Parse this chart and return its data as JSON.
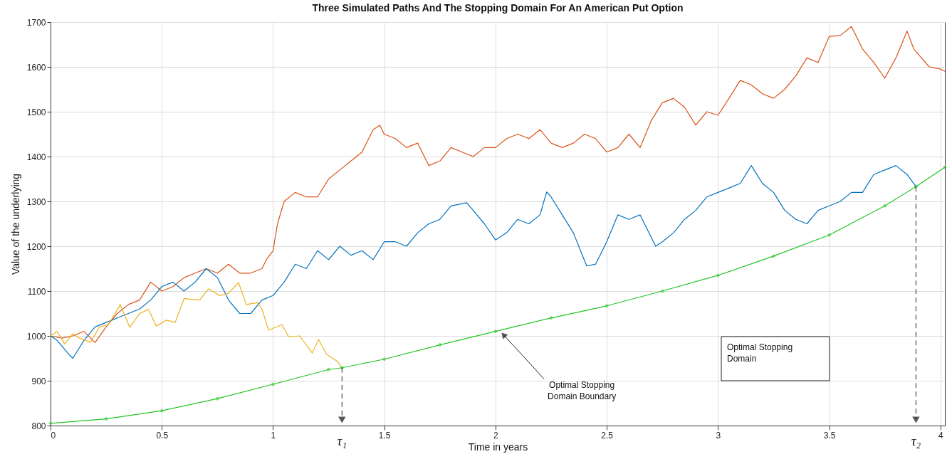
{
  "chart_data": {
    "type": "line",
    "title": "Three Simulated Paths And The Stopping Domain For An American Put Option",
    "xlabel": "Time in years",
    "ylabel": "Value of the underlying",
    "xlim": [
      0,
      4.02
    ],
    "ylim": [
      800,
      1700
    ],
    "xticks": [
      0,
      0.5,
      1,
      1.5,
      2,
      2.5,
      3,
      3.5,
      4
    ],
    "yticks": [
      800,
      900,
      1000,
      1100,
      1200,
      1300,
      1400,
      1500,
      1600,
      1700
    ],
    "grid": true,
    "series": [
      {
        "color": "#d95319",
        "x": [
          0,
          0.05,
          0.1,
          0.15,
          0.2,
          0.25,
          0.3,
          0.35,
          0.4,
          0.45,
          0.5,
          0.55,
          0.6,
          0.65,
          0.7,
          0.75,
          0.8,
          0.85,
          0.9,
          0.95,
          0.97,
          1.0,
          1.02,
          1.05,
          1.1,
          1.15,
          1.2,
          1.25,
          1.3,
          1.35,
          1.4,
          1.45,
          1.48,
          1.5,
          1.55,
          1.6,
          1.65,
          1.7,
          1.75,
          1.8,
          1.85,
          1.9,
          1.95,
          2.0,
          2.05,
          2.1,
          2.15,
          2.2,
          2.25,
          2.3,
          2.35,
          2.4,
          2.45,
          2.5,
          2.55,
          2.6,
          2.65,
          2.7,
          2.75,
          2.8,
          2.85,
          2.9,
          2.95,
          3.0,
          3.05,
          3.1,
          3.15,
          3.2,
          3.25,
          3.3,
          3.35,
          3.4,
          3.45,
          3.5,
          3.55,
          3.6,
          3.65,
          3.7,
          3.75,
          3.8,
          3.85,
          3.88,
          3.95,
          4.0,
          4.02
        ],
        "values": [
          1000,
          995,
          1000,
          1010,
          985,
          1020,
          1050,
          1070,
          1080,
          1120,
          1100,
          1110,
          1130,
          1140,
          1150,
          1140,
          1160,
          1140,
          1140,
          1150,
          1170,
          1190,
          1250,
          1300,
          1320,
          1310,
          1310,
          1350,
          1370,
          1390,
          1410,
          1460,
          1470,
          1450,
          1440,
          1420,
          1430,
          1380,
          1390,
          1420,
          1410,
          1400,
          1420,
          1420,
          1440,
          1450,
          1440,
          1460,
          1430,
          1420,
          1430,
          1450,
          1440,
          1410,
          1420,
          1450,
          1420,
          1480,
          1520,
          1530,
          1510,
          1470,
          1500,
          1492,
          1530,
          1570,
          1560,
          1540,
          1530,
          1550,
          1580,
          1620,
          1610,
          1668,
          1670,
          1690,
          1640,
          1610,
          1575,
          1620,
          1680,
          1640,
          1600,
          1595,
          1590
        ]
      },
      {
        "color": "#0072bd",
        "x": [
          0,
          0.03,
          0.08,
          0.1,
          0.15,
          0.2,
          0.25,
          0.3,
          0.35,
          0.4,
          0.45,
          0.5,
          0.55,
          0.6,
          0.65,
          0.7,
          0.75,
          0.8,
          0.85,
          0.9,
          0.95,
          1.0,
          1.05,
          1.1,
          1.15,
          1.2,
          1.25,
          1.3,
          1.35,
          1.4,
          1.45,
          1.5,
          1.55,
          1.6,
          1.65,
          1.7,
          1.75,
          1.8,
          1.87,
          1.9,
          1.95,
          2.0,
          2.05,
          2.1,
          2.15,
          2.2,
          2.23,
          2.25,
          2.3,
          2.35,
          2.41,
          2.45,
          2.5,
          2.55,
          2.6,
          2.65,
          2.7,
          2.72,
          2.75,
          2.8,
          2.85,
          2.9,
          2.95,
          3.0,
          3.05,
          3.1,
          3.15,
          3.2,
          3.25,
          3.3,
          3.35,
          3.4,
          3.45,
          3.5,
          3.55,
          3.6,
          3.65,
          3.7,
          3.75,
          3.8,
          3.85,
          3.89
        ],
        "values": [
          1000,
          990,
          960,
          950,
          990,
          1020,
          1030,
          1040,
          1050,
          1060,
          1080,
          1110,
          1120,
          1100,
          1120,
          1150,
          1130,
          1080,
          1050,
          1050,
          1080,
          1090,
          1120,
          1160,
          1150,
          1190,
          1170,
          1200,
          1180,
          1190,
          1170,
          1210,
          1210,
          1200,
          1230,
          1250,
          1260,
          1290,
          1297,
          1280,
          1250,
          1214,
          1230,
          1260,
          1250,
          1270,
          1321,
          1310,
          1270,
          1230,
          1156,
          1160,
          1210,
          1270,
          1260,
          1270,
          1220,
          1200,
          1210,
          1230,
          1260,
          1280,
          1310,
          1320,
          1330,
          1340,
          1380,
          1340,
          1320,
          1280,
          1260,
          1250,
          1280,
          1290,
          1300,
          1320,
          1320,
          1360,
          1370,
          1380,
          1360,
          1333
        ]
      },
      {
        "color": "#edb120",
        "x": [
          0,
          0.03,
          0.063,
          0.1,
          0.13,
          0.18,
          0.22,
          0.26,
          0.29,
          0.313,
          0.356,
          0.4,
          0.44,
          0.475,
          0.52,
          0.56,
          0.6,
          0.67,
          0.71,
          0.76,
          0.8,
          0.845,
          0.88,
          0.93,
          0.95,
          0.98,
          1.04,
          1.07,
          1.12,
          1.176,
          1.205,
          1.24,
          1.29,
          1.31
        ],
        "values": [
          1000,
          1010,
          982,
          1005,
          995,
          986,
          1020,
          1025,
          1050,
          1070,
          1019,
          1050,
          1059,
          1022,
          1035,
          1030,
          1083,
          1080,
          1105,
          1090,
          1095,
          1119,
          1070,
          1074,
          1060,
          1013,
          1025,
          998,
          1000,
          962,
          992,
          959,
          943,
          929
        ]
      },
      {
        "color": "#22c422",
        "marker": "cross",
        "x": [
          0,
          0.25,
          0.5,
          0.75,
          1,
          1.25,
          1.31,
          1.5,
          1.75,
          2,
          2.25,
          2.5,
          2.75,
          3,
          3.25,
          3.5,
          3.75,
          3.89,
          4.02
        ],
        "values": [
          805,
          815,
          833,
          860,
          892,
          925,
          929,
          948,
          980,
          1010,
          1040,
          1067,
          1100,
          1135,
          1178,
          1225,
          1290,
          1333,
          1376
        ]
      }
    ],
    "annotations": [
      {
        "text": "τ₁",
        "x": 1.31,
        "y": 929
      },
      {
        "text": "τ₂",
        "x": 3.89,
        "y": 1333
      },
      {
        "text": "Optimal Stopping Domain Boundary",
        "x": 2.02,
        "y": 1012
      },
      "Optimal Stopping Domain"
    ]
  }
}
